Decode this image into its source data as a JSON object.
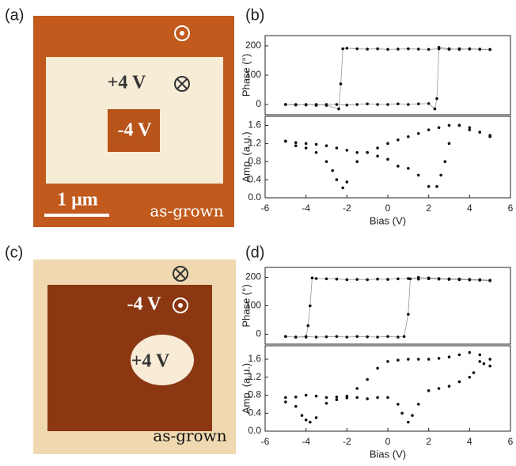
{
  "panel_labels": [
    "(a)",
    "(b)",
    "(c)",
    "(d)"
  ],
  "images": [
    {
      "texts": [
        "+4 V",
        "-4 V",
        "1 μm",
        "as-grown"
      ]
    },
    {
      "texts": [
        "-4 V",
        "+4 V",
        "as-grown"
      ]
    }
  ],
  "chart_data": [
    {
      "type": "scatter",
      "ylabel": "Phase (°)",
      "color": "#111",
      "connect": true,
      "xlim": [
        -6,
        6
      ],
      "ylim": [
        -35,
        235
      ],
      "yticks": [
        0,
        100,
        200
      ],
      "x": [
        -5,
        -4.5,
        -4,
        -3.5,
        -3,
        -2.5,
        -2,
        -1.5,
        -1,
        -0.5,
        0,
        0.5,
        1,
        1.5,
        2,
        2.3,
        2.4,
        2.5,
        3,
        3.5,
        4,
        4.5,
        5,
        5,
        4.5,
        4,
        3.5,
        3,
        2.5,
        2,
        1.5,
        1,
        0.5,
        0,
        -0.5,
        -1,
        -1.5,
        -2,
        -2.2,
        -2.3,
        -2.4,
        -3,
        -3.5,
        -4,
        -4.5,
        -5
      ],
      "values": [
        0,
        -2,
        0,
        -3,
        0,
        0,
        -2,
        0,
        2,
        0,
        0,
        2,
        0,
        2,
        3,
        -15,
        20,
        195,
        190,
        188,
        190,
        189,
        188,
        187,
        188,
        189,
        190,
        188,
        190,
        188,
        189,
        190,
        189,
        188,
        190,
        189,
        190,
        192,
        190,
        70,
        -15,
        -3,
        0,
        -2,
        0,
        0
      ]
    },
    {
      "type": "scatter",
      "ylabel": "Amp. (a.u.)",
      "xlabel": "Bias (V)",
      "color": "#111",
      "connect": false,
      "xlim": [
        -6,
        6
      ],
      "ylim": [
        0,
        1.8
      ],
      "xticks": [
        -6,
        -4,
        -2,
        0,
        2,
        4,
        6
      ],
      "yticks": [
        {
          "value": 0,
          "label": "0.0"
        },
        0.4,
        0.8,
        1.2,
        1.6
      ],
      "x": [
        -5,
        -4.5,
        -4,
        -3.5,
        -3,
        -2.7,
        -2.5,
        -2.2,
        -2,
        -1.5,
        -1,
        -0.5,
        0,
        0.5,
        1,
        1.5,
        2,
        2.5,
        3,
        3.5,
        4,
        4.5,
        5,
        5,
        4.5,
        4,
        3.5,
        3,
        2.8,
        2.6,
        2.4,
        2,
        1.5,
        1,
        0.5,
        0,
        -0.5,
        -1,
        -1.5,
        -2,
        -2.5,
        -3,
        -3.5,
        -4,
        -4.5,
        -5
      ],
      "values": [
        1.25,
        1.15,
        1.1,
        1.0,
        0.8,
        0.6,
        0.4,
        0.22,
        0.35,
        0.8,
        1.0,
        1.1,
        1.2,
        1.28,
        1.35,
        1.42,
        1.5,
        1.55,
        1.6,
        1.6,
        1.5,
        1.45,
        1.35,
        1.38,
        1.45,
        1.55,
        1.6,
        1.2,
        0.8,
        0.5,
        0.25,
        0.25,
        0.5,
        0.65,
        0.7,
        0.85,
        0.92,
        1.0,
        1.0,
        1.05,
        1.1,
        1.15,
        1.18,
        1.2,
        1.22,
        1.25
      ]
    },
    {
      "type": "scatter",
      "ylabel": "Phase (°)",
      "color": "#111",
      "connect": true,
      "xlim": [
        -6,
        6
      ],
      "ylim": [
        -35,
        235
      ],
      "yticks": [
        0,
        100,
        200
      ],
      "x": [
        -5,
        -4.5,
        -4,
        -3.5,
        -3,
        -2.5,
        -2,
        -1.5,
        -1,
        -0.5,
        0,
        0.5,
        0.8,
        1.0,
        1.1,
        1.5,
        2,
        2.5,
        3,
        3.5,
        4,
        4.5,
        5,
        5,
        4.5,
        4,
        3.5,
        3,
        2.5,
        2,
        1.5,
        1,
        0.5,
        0,
        -0.5,
        -1,
        -1.5,
        -2,
        -2.5,
        -3,
        -3.5,
        -3.7,
        -3.8,
        -3.9,
        -4,
        -4.5,
        -5
      ],
      "values": [
        -8,
        -10,
        -8,
        -10,
        -9,
        -8,
        -10,
        -8,
        -9,
        -10,
        -8,
        -10,
        -8,
        70,
        195,
        200,
        198,
        196,
        195,
        194,
        193,
        192,
        190,
        188,
        190,
        191,
        192,
        193,
        194,
        195,
        194,
        196,
        195,
        193,
        194,
        192,
        193,
        192,
        194,
        195,
        196,
        198,
        100,
        30,
        -10,
        -10,
        -8
      ]
    },
    {
      "type": "scatter",
      "ylabel": "Amp. (a.u.)",
      "xlabel": "Bias (V)",
      "color": "#111",
      "connect": false,
      "xlim": [
        -6,
        6
      ],
      "ylim": [
        0,
        1.9
      ],
      "xticks": [
        -6,
        -4,
        -2,
        0,
        2,
        4,
        6
      ],
      "yticks": [
        {
          "value": 0,
          "label": "0.0"
        },
        0.4,
        0.8,
        1.2,
        1.6
      ],
      "x": [
        -5,
        -4.5,
        -4.2,
        -4,
        -3.8,
        -3.5,
        -3,
        -2.5,
        -2,
        -1.5,
        -1,
        -0.5,
        0,
        0.5,
        1,
        1.5,
        2,
        2.5,
        3,
        3.5,
        4,
        4.5,
        5,
        5,
        4.7,
        4.5,
        4.2,
        4,
        3.5,
        3,
        2.5,
        2,
        1.5,
        1.2,
        1,
        0.7,
        0.5,
        0,
        -0.5,
        -1,
        -1.5,
        -2,
        -2.5,
        -3,
        -3.5,
        -4,
        -4.5,
        -5
      ],
      "values": [
        0.65,
        0.55,
        0.35,
        0.25,
        0.2,
        0.3,
        0.62,
        0.7,
        0.78,
        0.95,
        1.15,
        1.4,
        1.55,
        1.58,
        1.6,
        1.6,
        1.6,
        1.62,
        1.65,
        1.7,
        1.75,
        1.7,
        1.6,
        1.45,
        1.5,
        1.55,
        1.3,
        1.2,
        1.1,
        1.0,
        0.95,
        0.9,
        0.6,
        0.35,
        0.2,
        0.4,
        0.6,
        0.75,
        0.75,
        0.72,
        0.75,
        0.74,
        0.76,
        0.75,
        0.78,
        0.8,
        0.76,
        0.75
      ]
    }
  ]
}
